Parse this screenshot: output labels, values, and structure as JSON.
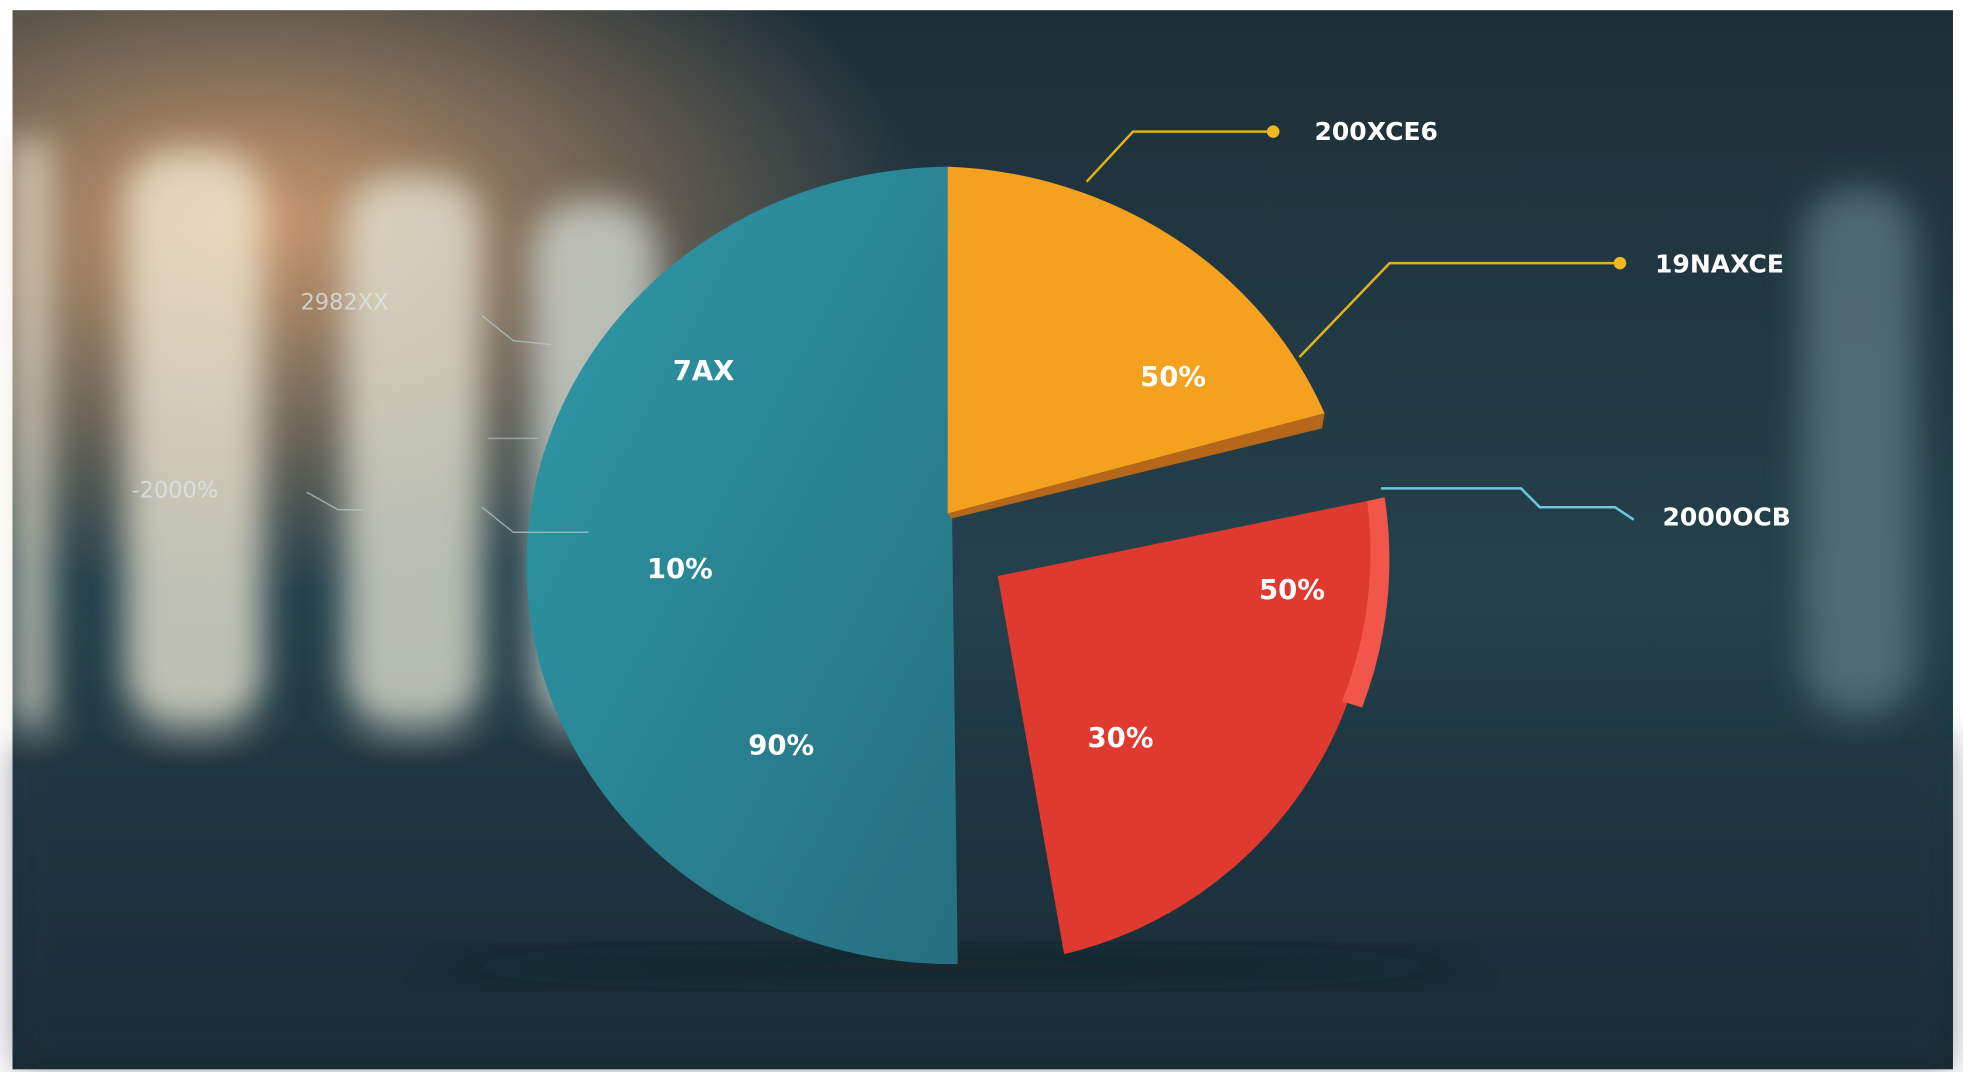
{
  "side_labels": [
    "2982XX",
    "-2000%"
  ],
  "slices": [
    {
      "labels": [
        "7AX",
        "10%",
        "90%"
      ]
    },
    {
      "labels": [
        "50%"
      ]
    },
    {
      "labels": [
        "50%",
        "30%"
      ]
    }
  ],
  "callouts": [
    {
      "label": "200XCE6"
    },
    {
      "label": "19NAXCE"
    },
    {
      "label": "2000OCB"
    }
  ]
}
